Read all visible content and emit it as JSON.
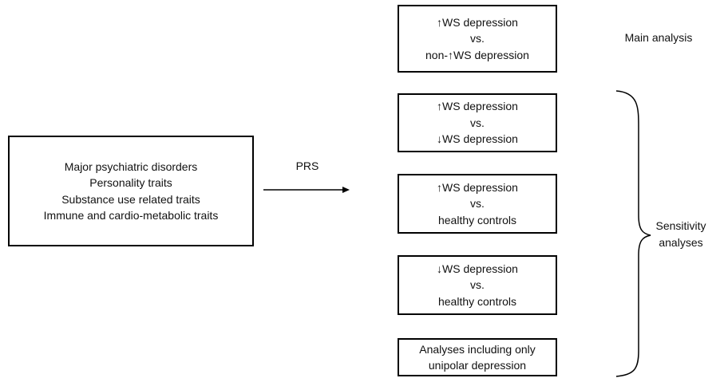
{
  "left_box": {
    "lines": [
      "Major psychiatric disorders",
      "Personality traits",
      "Substance use related traits",
      "Immune and cardio-metabolic traits"
    ]
  },
  "arrow_label": "PRS",
  "comparisons": [
    {
      "lines": [
        "↑WS  depression",
        "vs.",
        "non-↑WS depression"
      ]
    },
    {
      "lines": [
        "↑WS depression",
        "vs.",
        "↓WS  depression"
      ]
    },
    {
      "lines": [
        "↑WS depression",
        "vs.",
        "healthy controls"
      ]
    },
    {
      "lines": [
        "↓WS  depression",
        "vs.",
        "healthy controls"
      ]
    },
    {
      "lines": [
        "Analyses including only",
        "unipolar depression"
      ]
    }
  ],
  "main_label": "Main analysis",
  "sensitivity_label": [
    "Sensitivity",
    "analyses"
  ]
}
